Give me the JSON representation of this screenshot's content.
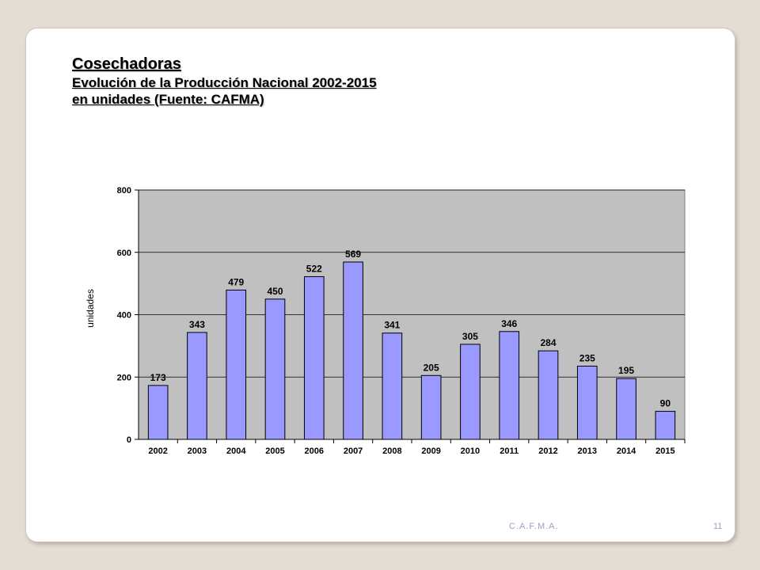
{
  "slide": {
    "title": "Cosechadoras",
    "subtitle": "Evolución de la Producción Nacional 2002-2015",
    "subtitle2": "en unidades (Fuente: CAFMA)",
    "footer": "C.A.F.M.A.",
    "page_number": "11"
  },
  "chart_data": {
    "type": "bar",
    "categories": [
      "2002",
      "2003",
      "2004",
      "2005",
      "2006",
      "2007",
      "2008",
      "2009",
      "2010",
      "2011",
      "2012",
      "2013",
      "2014",
      "2015"
    ],
    "values": [
      173,
      343,
      479,
      450,
      522,
      569,
      341,
      205,
      305,
      346,
      284,
      235,
      195,
      90
    ],
    "xlabel": "",
    "ylabel": "unidades",
    "ylim": [
      0,
      800
    ],
    "yticks": [
      0,
      200,
      400,
      600,
      800
    ],
    "grid": true,
    "legend": "none",
    "colors": {
      "bar": "#9999ff",
      "plot_bg": "#c0c0c0",
      "bar_stroke": "#000000"
    }
  }
}
